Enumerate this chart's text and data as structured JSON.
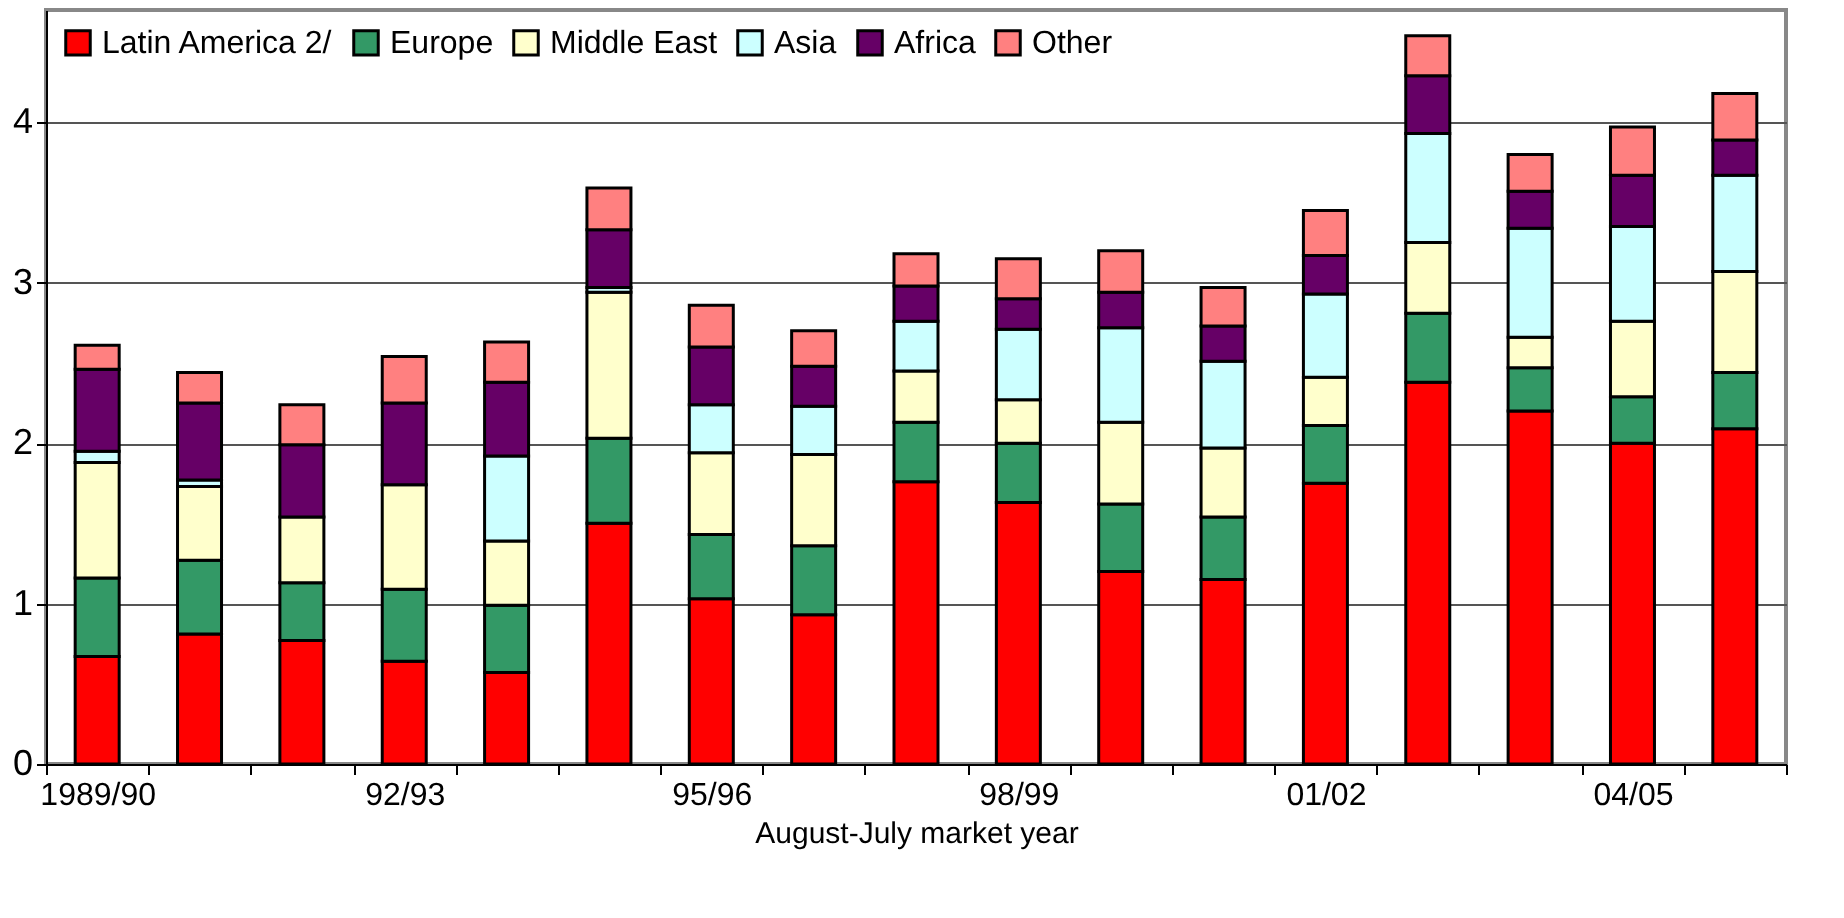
{
  "chart_data": {
    "type": "bar",
    "stacked": true,
    "xlabel": "August-July market year",
    "categories": [
      "1989/90",
      null,
      null,
      "92/93",
      null,
      null,
      "95/96",
      null,
      null,
      "98/99",
      null,
      null,
      "01/02",
      null,
      null,
      "04/05",
      null
    ],
    "series": [
      {
        "name": "Latin America 2/",
        "color": "#ff0000",
        "values": [
          0.67,
          0.81,
          0.77,
          0.64,
          0.57,
          1.5,
          1.03,
          0.93,
          1.76,
          1.63,
          1.2,
          1.15,
          1.75,
          2.38,
          2.2,
          2.0,
          2.09
        ]
      },
      {
        "name": "Europe",
        "color": "#339966",
        "values": [
          0.49,
          0.46,
          0.36,
          0.45,
          0.42,
          0.53,
          0.4,
          0.43,
          0.37,
          0.37,
          0.42,
          0.39,
          0.36,
          0.43,
          0.27,
          0.29,
          0.35
        ]
      },
      {
        "name": "Middle East",
        "color": "#ffffcc",
        "values": [
          0.72,
          0.46,
          0.41,
          0.65,
          0.4,
          0.91,
          0.51,
          0.57,
          0.32,
          0.27,
          0.51,
          0.43,
          0.3,
          0.44,
          0.19,
          0.47,
          0.63
        ]
      },
      {
        "name": "Asia",
        "color": "#ccffff",
        "values": [
          0.07,
          0.04,
          null,
          null,
          0.53,
          0.03,
          0.3,
          0.3,
          0.31,
          0.44,
          0.59,
          0.54,
          0.52,
          0.68,
          0.68,
          0.59,
          0.6
        ]
      },
      {
        "name": "Africa",
        "color": "#660066",
        "values": [
          0.51,
          0.48,
          0.45,
          0.51,
          0.46,
          0.36,
          0.36,
          0.25,
          0.22,
          0.19,
          0.22,
          0.22,
          0.24,
          0.36,
          0.23,
          0.32,
          0.22
        ]
      },
      {
        "name": "Other",
        "color": "#ff8080",
        "values": [
          0.15,
          0.19,
          0.25,
          0.29,
          0.25,
          0.26,
          0.26,
          0.22,
          0.2,
          0.25,
          0.26,
          0.24,
          0.28,
          0.25,
          0.23,
          0.3,
          0.29
        ]
      }
    ],
    "ylim": [
      0,
      4.7
    ],
    "yticks": [
      0,
      1,
      2,
      3,
      4
    ],
    "grid": "y",
    "legend": "top left"
  }
}
